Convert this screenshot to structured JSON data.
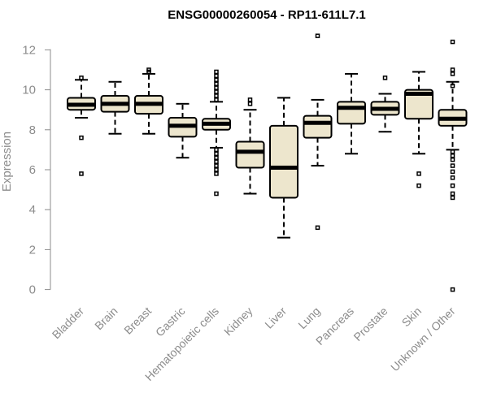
{
  "chart_data": {
    "type": "box",
    "title": "ENSG00000260054 - RP11-611L7.1",
    "ylabel": "Expression",
    "xlabel": "",
    "ylim": [
      0,
      12.5
    ],
    "yticks": [
      0,
      2,
      4,
      6,
      8,
      10,
      12
    ],
    "grid": false,
    "box_color": "#ede6cd",
    "categories": [
      "Bladder",
      "Brain",
      "Breast",
      "Gastric",
      "Hematopoietic cells",
      "Kidney",
      "Liver",
      "Lung",
      "Pancreas",
      "Prostate",
      "Skin",
      "Unknown / Other"
    ],
    "boxes": [
      {
        "whisker_low": 8.6,
        "q1": 9.0,
        "median": 9.25,
        "q3": 9.6,
        "whisker_high": 10.5,
        "outliers": [
          10.6,
          7.6,
          5.8
        ]
      },
      {
        "whisker_low": 7.8,
        "q1": 8.9,
        "median": 9.3,
        "q3": 9.7,
        "whisker_high": 10.4,
        "outliers": []
      },
      {
        "whisker_low": 7.8,
        "q1": 8.8,
        "median": 9.3,
        "q3": 9.7,
        "whisker_high": 10.8,
        "outliers": [
          11.0,
          10.9
        ]
      },
      {
        "whisker_low": 6.6,
        "q1": 7.65,
        "median": 8.2,
        "q3": 8.6,
        "whisker_high": 9.3,
        "outliers": []
      },
      {
        "whisker_low": 7.1,
        "q1": 8.0,
        "median": 8.3,
        "q3": 8.55,
        "whisker_high": 9.4,
        "outliers": [
          10.9,
          10.7,
          10.5,
          10.3,
          10.1,
          9.9,
          9.7,
          9.5,
          7.0,
          6.8,
          6.6,
          6.4,
          6.2,
          6.0,
          5.8,
          4.8
        ]
      },
      {
        "whisker_low": 4.8,
        "q1": 6.1,
        "median": 6.9,
        "q3": 7.4,
        "whisker_high": 9.0,
        "outliers": [
          9.5,
          9.3
        ]
      },
      {
        "whisker_low": 2.6,
        "q1": 4.6,
        "median": 6.1,
        "q3": 8.2,
        "whisker_high": 9.6,
        "outliers": []
      },
      {
        "whisker_low": 6.2,
        "q1": 7.6,
        "median": 8.35,
        "q3": 8.7,
        "whisker_high": 9.5,
        "outliers": [
          12.7,
          3.1
        ]
      },
      {
        "whisker_low": 6.8,
        "q1": 8.3,
        "median": 9.1,
        "q3": 9.4,
        "whisker_high": 10.8,
        "outliers": []
      },
      {
        "whisker_low": 7.9,
        "q1": 8.75,
        "median": 9.05,
        "q3": 9.4,
        "whisker_high": 9.8,
        "outliers": [
          10.6
        ]
      },
      {
        "whisker_low": 6.8,
        "q1": 8.55,
        "median": 9.8,
        "q3": 10.0,
        "whisker_high": 10.9,
        "outliers": [
          5.8,
          5.2
        ]
      },
      {
        "whisker_low": 7.0,
        "q1": 8.2,
        "median": 8.55,
        "q3": 9.0,
        "whisker_high": 10.4,
        "outliers": [
          12.4,
          11.0,
          10.8,
          10.2,
          6.9,
          6.7,
          6.5,
          6.2,
          5.9,
          5.6,
          5.2,
          4.8,
          4.6,
          0.0
        ]
      }
    ]
  }
}
